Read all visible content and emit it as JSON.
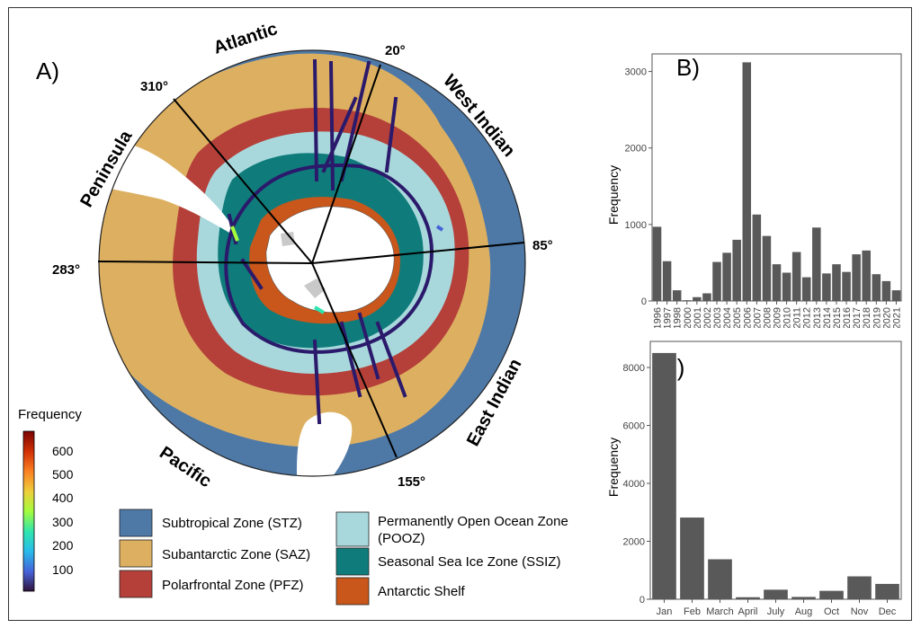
{
  "panel_a": {
    "label": "A)",
    "sectors": {
      "atlantic": "Atlantic",
      "west_indian": "West Indian",
      "east_indian": "East Indian",
      "pacific": "Pacific",
      "peninsula": "Peninsula"
    },
    "degrees": {
      "d20": "20°",
      "d85": "85°",
      "d155": "155°",
      "d283": "283°",
      "d310": "310°"
    },
    "colorbar": {
      "title": "Frequency",
      "ticks": [
        "600",
        "500",
        "400",
        "300",
        "200",
        "100"
      ],
      "colors": [
        "#7a0403",
        "#d23105",
        "#fb8022",
        "#edd03a",
        "#a4fc3c",
        "#2ee5ae",
        "#28bceb",
        "#4662d8",
        "#30123b"
      ]
    },
    "zones": [
      {
        "label": "Subtropical Zone (STZ)",
        "color": "#4e79a7"
      },
      {
        "label": "Subantarctic Zone (SAZ)",
        "color": "#ddb061"
      },
      {
        "label": "Polarfrontal Zone (PFZ)",
        "color": "#b5403a"
      },
      {
        "label": "Permanently Open Ocean Zone (POOZ)",
        "color": "#a8d8dc"
      },
      {
        "label": "Seasonal Sea Ice Zone (SSIZ)",
        "color": "#0f7c7b"
      },
      {
        "label": "Antarctic Shelf",
        "color": "#c9561a"
      }
    ]
  },
  "chart_data": [
    {
      "type": "bar",
      "panel": "B)",
      "ylabel": "Frequency",
      "categories": [
        "1996",
        "1997",
        "1998",
        "2000",
        "2001",
        "2002",
        "2003",
        "2004",
        "2005",
        "2006",
        "2007",
        "2008",
        "2009",
        "2010",
        "2011",
        "2012",
        "2013",
        "2014",
        "2015",
        "2016",
        "2017",
        "2018",
        "2019",
        "2020",
        "2021"
      ],
      "values": [
        970,
        520,
        140,
        10,
        50,
        100,
        510,
        630,
        800,
        3120,
        1130,
        850,
        480,
        370,
        640,
        310,
        960,
        360,
        480,
        380,
        610,
        660,
        350,
        260,
        140
      ],
      "yticks": [
        0,
        1000,
        2000,
        3000
      ],
      "ylim": [
        0,
        3230
      ]
    },
    {
      "type": "bar",
      "panel": "C)",
      "ylabel": "Frequency",
      "categories": [
        "Jan",
        "Feb",
        "March",
        "April",
        "July",
        "Aug",
        "Oct",
        "Nov",
        "Dec"
      ],
      "values": [
        8500,
        2820,
        1380,
        70,
        330,
        80,
        290,
        790,
        530
      ],
      "yticks": [
        0,
        2000,
        4000,
        6000,
        8000
      ],
      "ylim": [
        0,
        8900
      ]
    }
  ]
}
